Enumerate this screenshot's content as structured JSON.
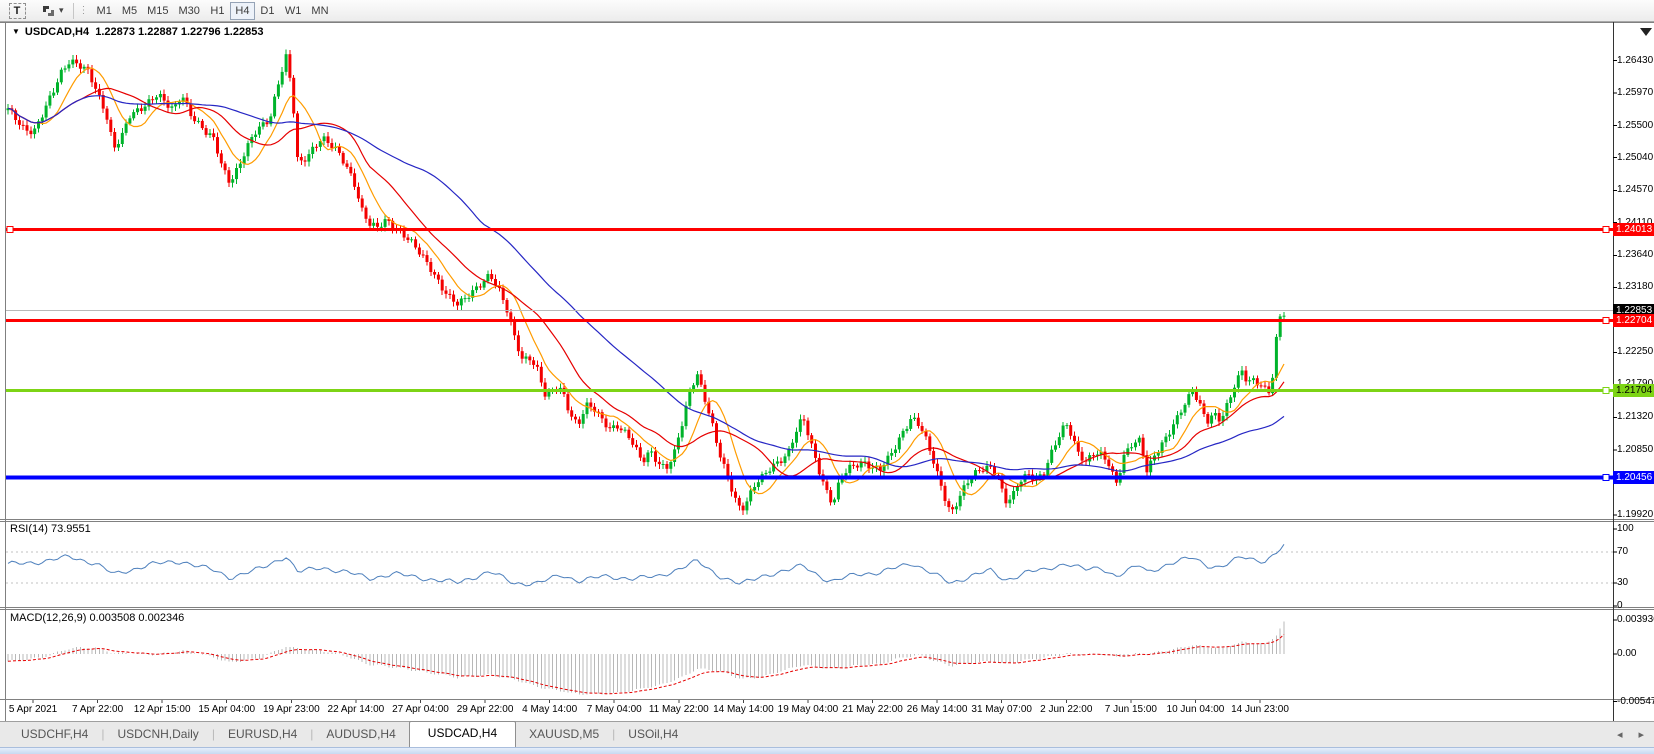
{
  "icons": {
    "symbol_menu": "▼",
    "dropdown_caret": "▾",
    "grip": "⋮",
    "scroll_left": "◂",
    "scroll_right": "▸"
  },
  "toolbar": {
    "text_tool_label": "T",
    "timeframes": [
      "M1",
      "M5",
      "M15",
      "M30",
      "H1",
      "H4",
      "D1",
      "W1",
      "MN"
    ],
    "active_timeframe": "H4"
  },
  "title": {
    "symbol": "USDCAD,H4",
    "ohlc": "1.22873 1.22887 1.22796 1.22853"
  },
  "tabs": {
    "items": [
      "USDCHF,H4",
      "USDCNH,Daily",
      "EURUSD,H4",
      "AUDUSD,H4",
      "USDCAD,H4",
      "XAUUSD,M5",
      "USOil,H4"
    ],
    "active": "USDCAD,H4"
  },
  "colors": {
    "bull": "#00b32b",
    "bear": "#f30000",
    "ma_fast": "#ff9c00",
    "ma_mid": "#e60000",
    "ma_slow": "#2626c4",
    "rsi_line": "#4f81bd",
    "rsi_level": "#c0c0c0",
    "macd_hist": "#b8b8b8",
    "macd_signal": "#e60000",
    "current_line": "#b8b8b8",
    "current_badge_bg": "#000000",
    "axis_line": "#333333",
    "panel_border": "#808080"
  },
  "chart_data": {
    "type": "candlestick",
    "symbol": "USDCAD",
    "timeframe": "H4",
    "current_bar": {
      "open": 1.22873,
      "high": 1.22887,
      "low": 1.22796,
      "close": 1.22853
    },
    "ylim": [
      1.19862,
      1.26956
    ],
    "candle_count": 336,
    "price_ticks": [
      "1.26430",
      "1.25970",
      "1.25500",
      "1.25040",
      "1.24570",
      "1.24110",
      "1.23640",
      "1.23180",
      "1.22710",
      "1.22250",
      "1.21790",
      "1.21320",
      "1.20850",
      "1.20390",
      "1.19920"
    ],
    "levels": [
      {
        "price": 1.24013,
        "label": "1.24013",
        "color": "#ff0000",
        "width": 3,
        "text_color": "#ffffff",
        "left_handle": true
      },
      {
        "price": 1.22704,
        "label": "1.22704",
        "color": "#ff0000",
        "width": 3,
        "text_color": "#ffffff",
        "left_handle": false
      },
      {
        "price": 1.21704,
        "label": "1.21704",
        "color": "#7dd415",
        "width": 3,
        "text_color": "#000000",
        "left_handle": false
      },
      {
        "price": 1.20456,
        "label": "1.20456",
        "color": "#0000ff",
        "width": 4,
        "text_color": "#ffffff",
        "left_handle": false
      }
    ],
    "current_price": {
      "price": 1.22853,
      "label": "1.22853"
    },
    "moving_averages": [
      {
        "period": 9,
        "color": "#ff9c00"
      },
      {
        "period": 20,
        "color": "#e60000"
      },
      {
        "period": 50,
        "color": "#2626c4"
      }
    ],
    "price_path": [
      [
        8,
        1.2572
      ],
      [
        16,
        1.256
      ],
      [
        24,
        1.2548
      ],
      [
        34,
        1.2542
      ],
      [
        44,
        1.2568
      ],
      [
        54,
        1.26
      ],
      [
        62,
        1.263
      ],
      [
        70,
        1.2646
      ],
      [
        78,
        1.2638
      ],
      [
        88,
        1.2625
      ],
      [
        96,
        1.26
      ],
      [
        106,
        1.257
      ],
      [
        114,
        1.252
      ],
      [
        122,
        1.2535
      ],
      [
        130,
        1.2562
      ],
      [
        140,
        1.2572
      ],
      [
        150,
        1.2588
      ],
      [
        158,
        1.2598
      ],
      [
        166,
        1.258
      ],
      [
        174,
        1.257
      ],
      [
        182,
        1.2594
      ],
      [
        190,
        1.257
      ],
      [
        198,
        1.2556
      ],
      [
        206,
        1.254
      ],
      [
        214,
        1.2528
      ],
      [
        222,
        1.249
      ],
      [
        230,
        1.247
      ],
      [
        238,
        1.2492
      ],
      [
        246,
        1.2516
      ],
      [
        254,
        1.2536
      ],
      [
        262,
        1.2548
      ],
      [
        270,
        1.256
      ],
      [
        278,
        1.2612
      ],
      [
        286,
        1.265
      ],
      [
        292,
        1.26
      ],
      [
        298,
        1.249
      ],
      [
        306,
        1.2502
      ],
      [
        314,
        1.252
      ],
      [
        322,
        1.2536
      ],
      [
        330,
        1.2524
      ],
      [
        338,
        1.251
      ],
      [
        346,
        1.249
      ],
      [
        354,
        1.247
      ],
      [
        362,
        1.2432
      ],
      [
        370,
        1.241
      ],
      [
        378,
        1.2402
      ],
      [
        386,
        1.2412
      ],
      [
        394,
        1.2404
      ],
      [
        402,
        1.2398
      ],
      [
        410,
        1.2388
      ],
      [
        418,
        1.237
      ],
      [
        426,
        1.2352
      ],
      [
        434,
        1.2336
      ],
      [
        442,
        1.232
      ],
      [
        450,
        1.2306
      ],
      [
        458,
        1.2294
      ],
      [
        466,
        1.23
      ],
      [
        474,
        1.2312
      ],
      [
        482,
        1.2326
      ],
      [
        490,
        1.234
      ],
      [
        498,
        1.2318
      ],
      [
        506,
        1.2288
      ],
      [
        514,
        1.2248
      ],
      [
        522,
        1.2216
      ],
      [
        530,
        1.222
      ],
      [
        538,
        1.22
      ],
      [
        546,
        1.2158
      ],
      [
        554,
        1.217
      ],
      [
        562,
        1.2172
      ],
      [
        570,
        1.214
      ],
      [
        578,
        1.2122
      ],
      [
        586,
        1.2148
      ],
      [
        594,
        1.2142
      ],
      [
        602,
        1.2128
      ],
      [
        610,
        1.2118
      ],
      [
        618,
        1.2122
      ],
      [
        626,
        1.2108
      ],
      [
        634,
        1.209
      ],
      [
        642,
        1.2066
      ],
      [
        650,
        1.2086
      ],
      [
        658,
        1.207
      ],
      [
        666,
        1.2058
      ],
      [
        674,
        1.2076
      ],
      [
        682,
        1.212
      ],
      [
        690,
        1.217
      ],
      [
        697,
        1.2198
      ],
      [
        704,
        1.2164
      ],
      [
        711,
        1.2128
      ],
      [
        718,
        1.2084
      ],
      [
        726,
        1.2052
      ],
      [
        734,
        1.2022
      ],
      [
        741,
        1.2
      ],
      [
        748,
        1.2016
      ],
      [
        756,
        1.2036
      ],
      [
        764,
        1.2046
      ],
      [
        772,
        1.2062
      ],
      [
        780,
        1.2072
      ],
      [
        788,
        1.2082
      ],
      [
        796,
        1.211
      ],
      [
        803,
        1.213
      ],
      [
        810,
        1.2098
      ],
      [
        818,
        1.2062
      ],
      [
        826,
        1.203
      ],
      [
        833,
        1.2008
      ],
      [
        840,
        1.204
      ],
      [
        848,
        1.2056
      ],
      [
        856,
        1.2064
      ],
      [
        864,
        1.207
      ],
      [
        872,
        1.2062
      ],
      [
        880,
        1.2056
      ],
      [
        888,
        1.207
      ],
      [
        896,
        1.209
      ],
      [
        904,
        1.2116
      ],
      [
        912,
        1.2134
      ],
      [
        920,
        1.212
      ],
      [
        928,
        1.209
      ],
      [
        936,
        1.2056
      ],
      [
        944,
        1.2022
      ],
      [
        951,
        1.1996
      ],
      [
        958,
        1.2014
      ],
      [
        966,
        1.2034
      ],
      [
        974,
        1.2048
      ],
      [
        982,
        1.2058
      ],
      [
        990,
        1.2064
      ],
      [
        998,
        1.205
      ],
      [
        1005,
        1.201
      ],
      [
        1012,
        1.2014
      ],
      [
        1020,
        1.204
      ],
      [
        1028,
        1.2052
      ],
      [
        1036,
        1.2046
      ],
      [
        1044,
        1.2052
      ],
      [
        1052,
        1.208
      ],
      [
        1060,
        1.2106
      ],
      [
        1066,
        1.2124
      ],
      [
        1072,
        1.2108
      ],
      [
        1078,
        1.2084
      ],
      [
        1086,
        1.2068
      ],
      [
        1094,
        1.2078
      ],
      [
        1102,
        1.2076
      ],
      [
        1110,
        1.2064
      ],
      [
        1116,
        1.2038
      ],
      [
        1124,
        1.2078
      ],
      [
        1132,
        1.2092
      ],
      [
        1140,
        1.2096
      ],
      [
        1147,
        1.2054
      ],
      [
        1154,
        1.2078
      ],
      [
        1162,
        1.2096
      ],
      [
        1170,
        1.2112
      ],
      [
        1178,
        1.213
      ],
      [
        1186,
        1.2152
      ],
      [
        1193,
        1.2172
      ],
      [
        1200,
        1.2152
      ],
      [
        1207,
        1.2128
      ],
      [
        1214,
        1.2136
      ],
      [
        1221,
        1.2124
      ],
      [
        1228,
        1.215
      ],
      [
        1235,
        1.218
      ],
      [
        1242,
        1.2202
      ],
      [
        1248,
        1.2184
      ],
      [
        1254,
        1.2186
      ],
      [
        1260,
        1.2176
      ],
      [
        1266,
        1.2168
      ],
      [
        1271,
        1.2166
      ],
      [
        1276,
        1.224
      ],
      [
        1281,
        1.2287
      ],
      [
        1284,
        1.2284
      ]
    ],
    "rsi": {
      "name": "RSI(14)",
      "value": "73.9551",
      "ticks": [
        "100",
        "70",
        "30",
        "0"
      ],
      "tick_values": [
        100,
        70,
        30,
        0
      ],
      "dashed_levels": [
        70,
        30
      ],
      "path": [
        [
          8,
          54
        ],
        [
          44,
          58
        ],
        [
          70,
          64
        ],
        [
          96,
          55
        ],
        [
          114,
          41
        ],
        [
          150,
          54
        ],
        [
          182,
          58
        ],
        [
          214,
          46
        ],
        [
          230,
          37
        ],
        [
          262,
          49
        ],
        [
          286,
          65
        ],
        [
          298,
          44
        ],
        [
          322,
          50
        ],
        [
          346,
          44
        ],
        [
          370,
          36
        ],
        [
          394,
          42
        ],
        [
          418,
          37
        ],
        [
          442,
          33
        ],
        [
          458,
          30
        ],
        [
          490,
          45
        ],
        [
          514,
          29
        ],
        [
          538,
          30
        ],
        [
          562,
          40
        ],
        [
          578,
          33
        ],
        [
          602,
          38
        ],
        [
          634,
          36
        ],
        [
          658,
          38
        ],
        [
          682,
          50
        ],
        [
          697,
          58
        ],
        [
          718,
          40
        ],
        [
          741,
          28
        ],
        [
          764,
          40
        ],
        [
          788,
          46
        ],
        [
          803,
          53
        ],
        [
          826,
          34
        ],
        [
          833,
          31
        ],
        [
          856,
          42
        ],
        [
          880,
          43
        ],
        [
          904,
          53
        ],
        [
          912,
          56
        ],
        [
          936,
          40
        ],
        [
          951,
          29
        ],
        [
          974,
          41
        ],
        [
          990,
          46
        ],
        [
          1005,
          33
        ],
        [
          1028,
          45
        ],
        [
          1044,
          46
        ],
        [
          1066,
          56
        ],
        [
          1086,
          47
        ],
        [
          1102,
          49
        ],
        [
          1116,
          39
        ],
        [
          1140,
          53
        ],
        [
          1147,
          44
        ],
        [
          1170,
          55
        ],
        [
          1193,
          63
        ],
        [
          1207,
          53
        ],
        [
          1221,
          50
        ],
        [
          1242,
          64
        ],
        [
          1254,
          61
        ],
        [
          1266,
          58
        ],
        [
          1276,
          68
        ],
        [
          1284,
          78
        ]
      ]
    },
    "macd": {
      "name": "MACD(12,26,9)",
      "values": "0.003508 0.002346",
      "ticks": [
        "0.003936",
        "0.00",
        "-0.00547"
      ],
      "tick_values": [
        0.003936,
        0,
        -0.00547
      ],
      "path": [
        [
          8,
          -0.0009
        ],
        [
          44,
          -0.0003
        ],
        [
          70,
          0.0006
        ],
        [
          96,
          0.0008
        ],
        [
          114,
          0.0001
        ],
        [
          150,
          -0.0001
        ],
        [
          182,
          0.0004
        ],
        [
          214,
          -0.0004
        ],
        [
          230,
          -0.0009
        ],
        [
          262,
          -0.0005
        ],
        [
          286,
          0.0009
        ],
        [
          298,
          0.0007
        ],
        [
          322,
          0.0003
        ],
        [
          346,
          -0.0002
        ],
        [
          370,
          -0.0012
        ],
        [
          394,
          -0.0016
        ],
        [
          418,
          -0.0019
        ],
        [
          442,
          -0.0024
        ],
        [
          458,
          -0.0028
        ],
        [
          490,
          -0.0023
        ],
        [
          514,
          -0.003
        ],
        [
          538,
          -0.0038
        ],
        [
          562,
          -0.0042
        ],
        [
          578,
          -0.0047
        ],
        [
          602,
          -0.0046
        ],
        [
          634,
          -0.0042
        ],
        [
          658,
          -0.0037
        ],
        [
          682,
          -0.0026
        ],
        [
          697,
          -0.0017
        ],
        [
          718,
          -0.002
        ],
        [
          741,
          -0.0028
        ],
        [
          764,
          -0.0026
        ],
        [
          788,
          -0.0018
        ],
        [
          803,
          -0.0012
        ],
        [
          826,
          -0.0016
        ],
        [
          840,
          -0.0017
        ],
        [
          864,
          -0.0012
        ],
        [
          880,
          -0.0011
        ],
        [
          904,
          -0.0004
        ],
        [
          920,
          -0.0002
        ],
        [
          936,
          -0.0008
        ],
        [
          951,
          -0.0013
        ],
        [
          974,
          -0.0011
        ],
        [
          990,
          -0.0008
        ],
        [
          1005,
          -0.0011
        ],
        [
          1028,
          -0.0007
        ],
        [
          1044,
          -0.0005
        ],
        [
          1066,
          0.0001
        ],
        [
          1086,
          0.0
        ],
        [
          1102,
          -0.0001
        ],
        [
          1116,
          -0.0004
        ],
        [
          1140,
          0.0002
        ],
        [
          1147,
          0.0
        ],
        [
          1170,
          0.0004
        ],
        [
          1193,
          0.0011
        ],
        [
          1207,
          0.0009
        ],
        [
          1221,
          0.0007
        ],
        [
          1242,
          0.0013
        ],
        [
          1254,
          0.0013
        ],
        [
          1266,
          0.0012
        ],
        [
          1276,
          0.0022
        ],
        [
          1284,
          0.0036
        ]
      ]
    },
    "time_labels": [
      "5 Apr 2021",
      "7 Apr 22:00",
      "12 Apr 15:00",
      "15 Apr 04:00",
      "19 Apr 23:00",
      "22 Apr 14:00",
      "27 Apr 04:00",
      "29 Apr 22:00",
      "4 May 14:00",
      "7 May 04:00",
      "11 May 22:00",
      "14 May 14:00",
      "19 May 04:00",
      "21 May 22:00",
      "26 May 14:00",
      "31 May 07:00",
      "2 Jun 22:00",
      "7 Jun 15:00",
      "10 Jun 04:00",
      "14 Jun 23:00"
    ]
  }
}
